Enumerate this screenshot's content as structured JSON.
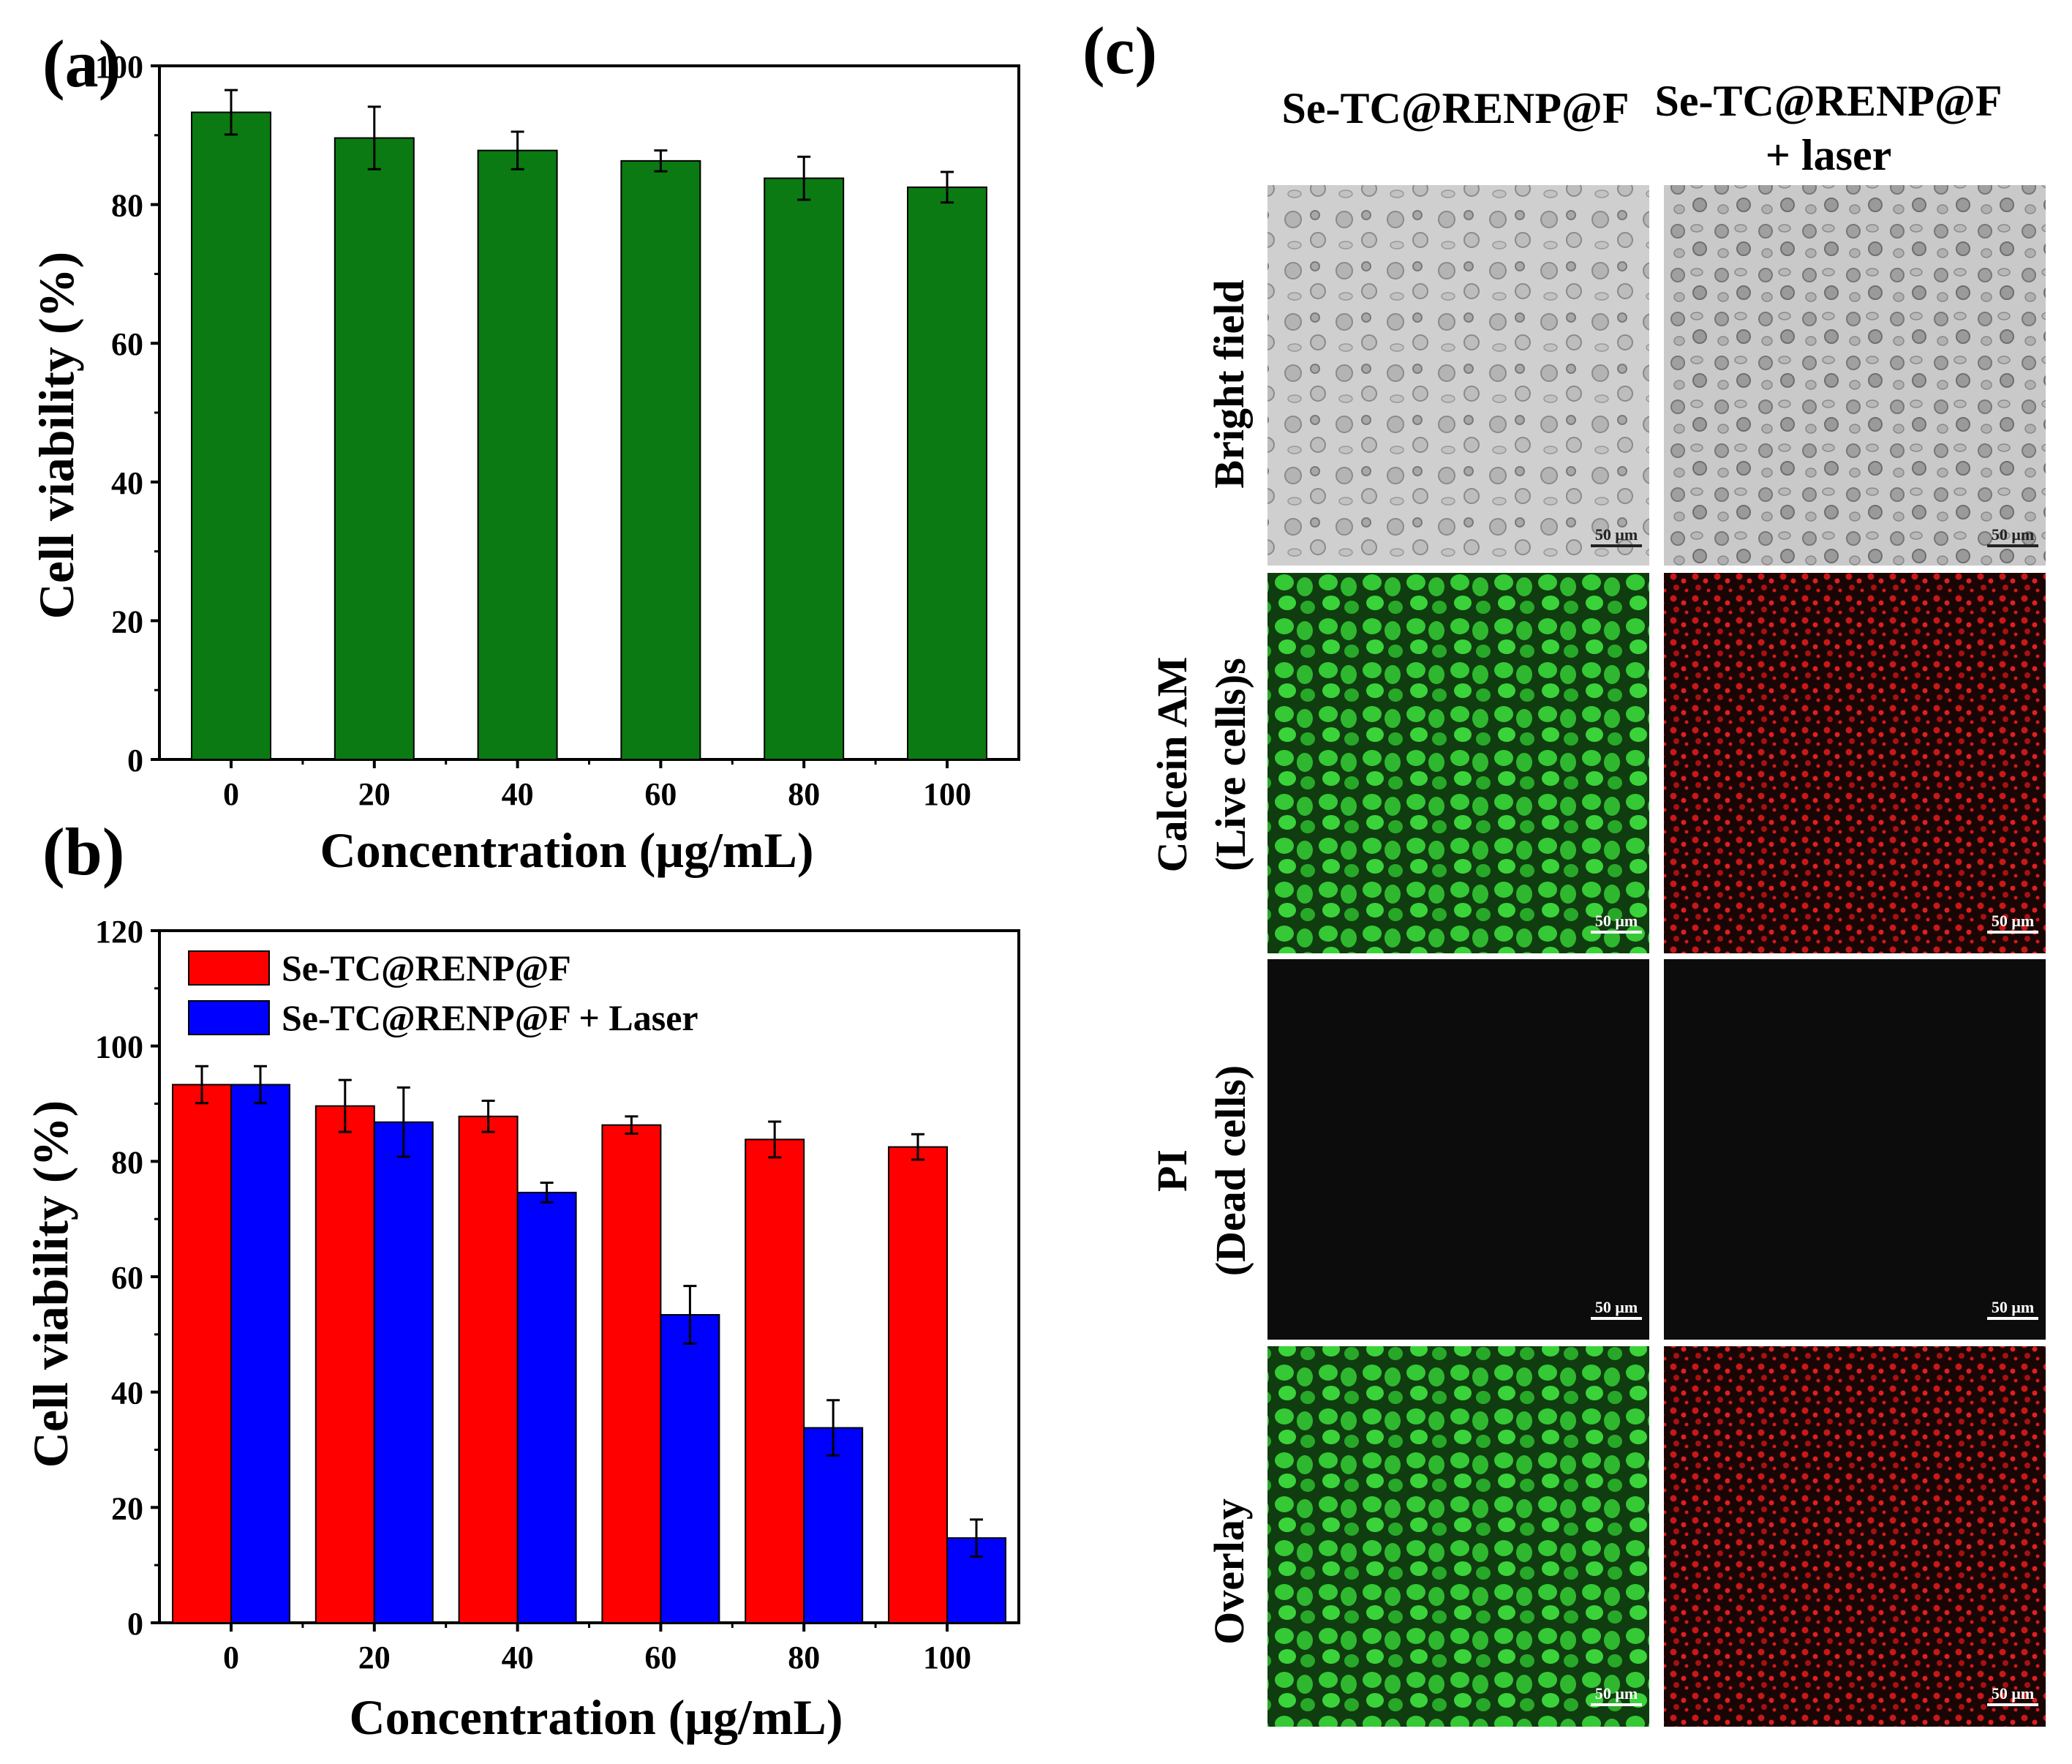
{
  "panel_labels": {
    "a": "(a)",
    "b": "(b)",
    "c": "(c)"
  },
  "chart_data": [
    {
      "id": "a",
      "type": "bar",
      "title": "",
      "xlabel": "Concentration (μg/mL)",
      "ylabel": "Cell viability (%)",
      "categories": [
        "0",
        "20",
        "40",
        "60",
        "80",
        "100"
      ],
      "ylim": [
        0,
        100
      ],
      "yticks": [
        0,
        20,
        40,
        60,
        80,
        100
      ],
      "series": [
        {
          "name": "Se-TC@RENP@F",
          "color": "#0b7a12",
          "values": [
            93.3,
            89.6,
            87.8,
            86.3,
            83.8,
            82.5
          ],
          "errors": [
            3.2,
            4.5,
            2.7,
            1.5,
            3.1,
            2.2
          ]
        }
      ]
    },
    {
      "id": "b",
      "type": "bar",
      "title": "",
      "xlabel": "Concentration (μg/mL)",
      "ylabel": "Cell viability (%)",
      "categories": [
        "0",
        "20",
        "40",
        "60",
        "80",
        "100"
      ],
      "ylim": [
        0,
        120
      ],
      "yticks": [
        0,
        20,
        40,
        60,
        80,
        100,
        120
      ],
      "legend_position": "top-left",
      "series": [
        {
          "name": "Se-TC@RENP@F",
          "color": "#ff0000",
          "values": [
            93.3,
            89.6,
            87.8,
            86.3,
            83.8,
            82.5
          ],
          "errors": [
            3.2,
            4.5,
            2.7,
            1.5,
            3.1,
            2.2
          ]
        },
        {
          "name": "Se-TC@RENP@F + Laser",
          "color": "#0000ff",
          "values": [
            93.3,
            86.8,
            74.6,
            53.4,
            33.8,
            14.7
          ],
          "errors": [
            3.2,
            6.0,
            1.7,
            5.0,
            4.8,
            3.2
          ]
        }
      ]
    }
  ],
  "panel_c": {
    "col_headers": [
      "Se-TC@RENP@F",
      "Se-TC@RENP@F",
      "+ laser"
    ],
    "row_labels": [
      [
        "Bright field"
      ],
      [
        "Calcein AM",
        "(Live cells)s"
      ],
      [
        "PI",
        "(Dead cells)"
      ],
      [
        "Overlay"
      ]
    ],
    "scale_bar": "50 μm"
  },
  "colors": {
    "green_fluor": "#2fbf2f",
    "red_fluor": "#d01818",
    "bright": "#c8c8c8",
    "dark": "#0c0c0c"
  }
}
